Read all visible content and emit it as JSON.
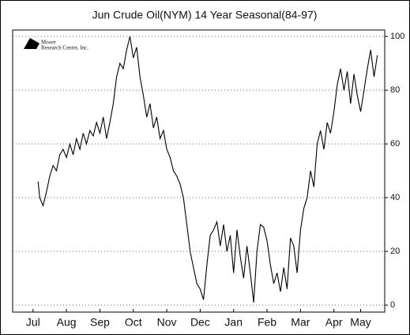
{
  "chart_data": {
    "type": "line",
    "title": "Jun Crude Oil(NYM) 14 Year Seasonal(84-97)",
    "logo": [
      "Moore",
      "Research Center, Inc."
    ],
    "x": [
      0.15,
      0.2,
      0.3,
      0.4,
      0.5,
      0.6,
      0.7,
      0.8,
      0.9,
      1.0,
      1.1,
      1.2,
      1.3,
      1.4,
      1.5,
      1.6,
      1.7,
      1.8,
      1.9,
      2.0,
      2.1,
      2.2,
      2.3,
      2.4,
      2.5,
      2.6,
      2.7,
      2.8,
      2.9,
      3.0,
      3.1,
      3.2,
      3.3,
      3.4,
      3.5,
      3.6,
      3.7,
      3.8,
      3.9,
      4.0,
      4.1,
      4.2,
      4.3,
      4.4,
      4.5,
      4.6,
      4.7,
      4.8,
      4.9,
      5.0,
      5.1,
      5.2,
      5.3,
      5.4,
      5.5,
      5.6,
      5.7,
      5.8,
      5.9,
      6.0,
      6.1,
      6.2,
      6.3,
      6.4,
      6.5,
      6.6,
      6.7,
      6.8,
      6.9,
      7.0,
      7.1,
      7.2,
      7.3,
      7.4,
      7.5,
      7.6,
      7.7,
      7.8,
      7.9,
      8.0,
      8.1,
      8.2,
      8.3,
      8.4,
      8.5,
      8.6,
      8.7,
      8.8,
      8.9,
      9.0,
      9.1,
      9.2,
      9.3,
      9.4,
      9.5,
      9.6,
      9.7,
      9.8,
      9.9,
      10.0,
      10.1,
      10.2,
      10.3
    ],
    "values": [
      46,
      40,
      37,
      42,
      48,
      52,
      50,
      56,
      58,
      55,
      60,
      56,
      62,
      58,
      64,
      60,
      65,
      63,
      68,
      64,
      70,
      62,
      68,
      75,
      85,
      90,
      88,
      95,
      100,
      92,
      96,
      85,
      78,
      70,
      75,
      66,
      70,
      62,
      65,
      58,
      55,
      50,
      48,
      45,
      40,
      30,
      20,
      14,
      8,
      6,
      2,
      15,
      26,
      28,
      31,
      22,
      30,
      20,
      26,
      12,
      28,
      18,
      10,
      22,
      12,
      1,
      20,
      30,
      29,
      24,
      15,
      8,
      12,
      5,
      14,
      6,
      25,
      22,
      12,
      28,
      36,
      40,
      50,
      44,
      60,
      65,
      58,
      68,
      64,
      72,
      82,
      88,
      80,
      87,
      75,
      86,
      78,
      72,
      80,
      88,
      95,
      85,
      93
    ],
    "color": "#000000",
    "xlim": [
      -0.61,
      10.52
    ],
    "xticks": [
      {
        "value": 0,
        "label": "Jul"
      },
      {
        "value": 1,
        "label": "Aug"
      },
      {
        "value": 2,
        "label": "Sep"
      },
      {
        "value": 3,
        "label": "Oct"
      },
      {
        "value": 4,
        "label": "Nov"
      },
      {
        "value": 5,
        "label": "Dec"
      },
      {
        "value": 6,
        "label": "Jan"
      },
      {
        "value": 7,
        "label": "Feb"
      },
      {
        "value": 8,
        "label": "Mar"
      },
      {
        "value": 9,
        "label": "Apr"
      },
      {
        "value": 9.8,
        "label": "May"
      }
    ],
    "ylim": [
      -2.6,
      102.4
    ],
    "yticks": [
      0,
      20,
      40,
      60,
      80,
      100
    ],
    "grid": true
  }
}
